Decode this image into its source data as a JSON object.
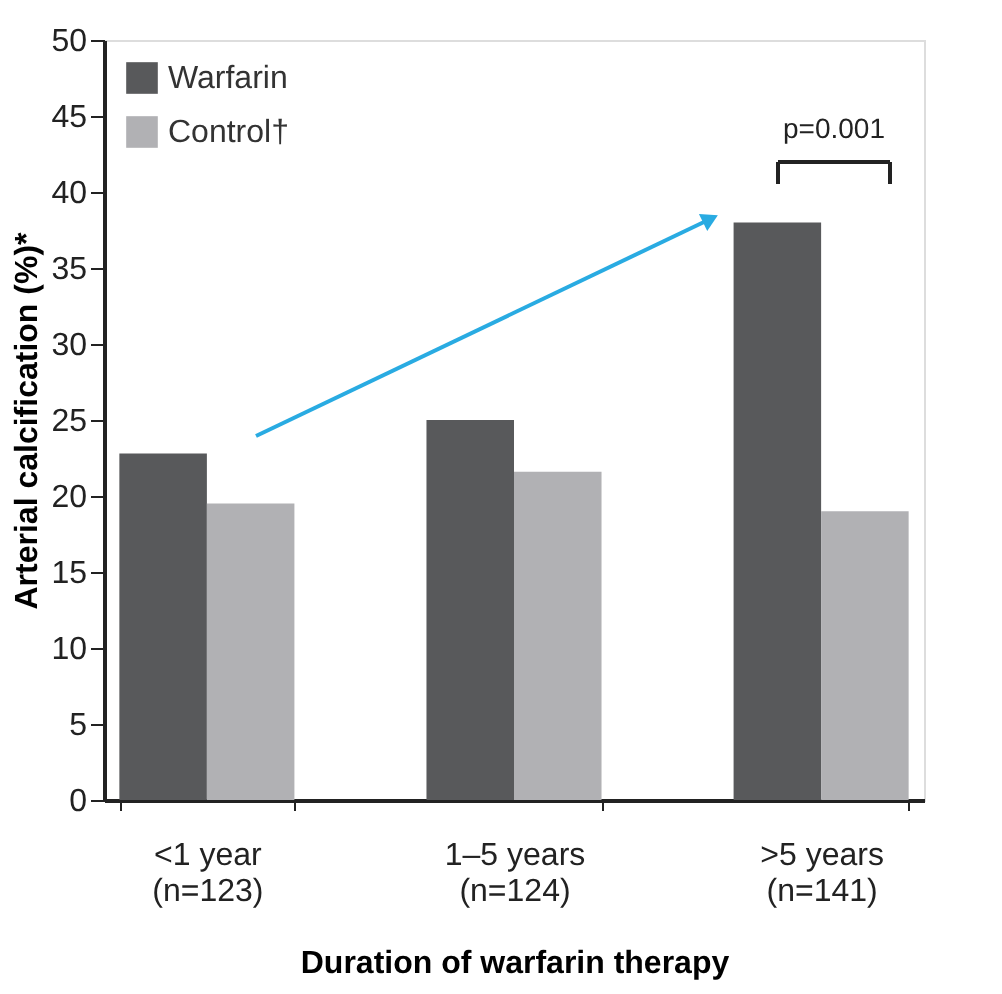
{
  "chart_data": {
    "type": "bar",
    "categories": [
      "<1 year\n(n=123)",
      "1–5 years\n(n=124)",
      ">5 years\n(n=141)"
    ],
    "series": [
      {
        "name": "Warfarin",
        "color": "#58595b",
        "values": [
          22.8,
          25,
          38
        ]
      },
      {
        "name": "Control†",
        "color": "#b1b1b4",
        "values": [
          19.5,
          21.6,
          19
        ]
      }
    ],
    "xlabel": "Duration of warfarin therapy",
    "ylabel": "Arterial calcification (%)*",
    "ylim": [
      0,
      50
    ],
    "yticks": [
      0,
      5,
      10,
      15,
      20,
      25,
      30,
      35,
      40,
      45,
      50
    ],
    "annotations": [
      "p=0.001"
    ],
    "legend": "top left",
    "grid": false
  }
}
